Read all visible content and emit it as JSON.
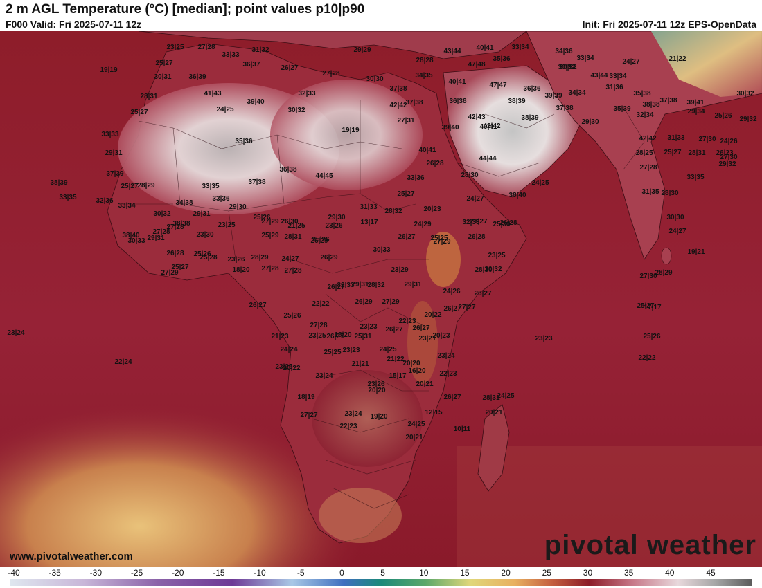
{
  "header": {
    "title": "2 m AGL Temperature (°C) [median]; point values p10|p90",
    "valid": "F000 Valid: Fri 2025-07-11 12z",
    "init": "Init: Fri 2025-07-11 12z EPS-OpenData"
  },
  "footer": {
    "site": "www.pivotalweather.com",
    "brand": "pivotal weather"
  },
  "colorbar": {
    "ticks": [
      "-40",
      "-35",
      "-30",
      "-25",
      "-20",
      "-15",
      "-10",
      "-5",
      "0",
      "5",
      "10",
      "15",
      "20",
      "25",
      "30",
      "35",
      "40",
      "45"
    ]
  },
  "point_values": [
    "23|25",
    "27|28",
    "33|33",
    "31|32",
    "29|29",
    "28|28",
    "43|44",
    "40|41",
    "33|34",
    "34|36",
    "33|34",
    "30|32",
    "19|19",
    "25|27",
    "36|37",
    "26|27",
    "27|28",
    "47|48",
    "35|36",
    "30|32",
    "24|27",
    "21|22",
    "30|31",
    "36|39",
    "30|30",
    "34|35",
    "37|38",
    "43|44",
    "33|34",
    "41|43",
    "40|41",
    "47|47",
    "36|36",
    "34|34",
    "31|36",
    "35|38",
    "28|31",
    "39|40",
    "32|33",
    "37|38",
    "36|38",
    "39|39",
    "38|38",
    "37|38",
    "30|32",
    "25|27",
    "24|25",
    "30|32",
    "42|42",
    "38|39",
    "37|38",
    "35|39",
    "39|41",
    "27|31",
    "42|43",
    "42|42",
    "38|39",
    "29|30",
    "32|34",
    "29|34",
    "25|26",
    "29|32",
    "33|33",
    "19|19",
    "39|40",
    "40|41",
    "42|42",
    "31|33",
    "27|30",
    "35|36",
    "28|31",
    "29|31",
    "24|26",
    "40|41",
    "28|25",
    "25|27",
    "26|23",
    "27|30",
    "44|44",
    "29|32",
    "27|28",
    "36|38",
    "37|38",
    "44|45",
    "26|28",
    "28|30",
    "24|25",
    "33|35",
    "37|39",
    "38|39",
    "28|29",
    "33|35",
    "33|36",
    "31|35",
    "25|27",
    "34|38",
    "25|27",
    "28|30",
    "33|35",
    "32|36",
    "33|36",
    "29|30",
    "24|27",
    "38|40",
    "29|31",
    "30|30",
    "33|34",
    "30|32",
    "28|32",
    "20|23",
    "23|25",
    "27|29",
    "29|30",
    "31|33",
    "24|29",
    "25|30",
    "21|27",
    "38|38",
    "38|40",
    "27|28",
    "23|30",
    "25|26",
    "26|30",
    "21|25",
    "23|26",
    "13|17",
    "32|33",
    "26|28",
    "29|31",
    "27|28",
    "25|29",
    "28|31",
    "25|26",
    "26|27",
    "25|25",
    "24|27",
    "19|21",
    "30|33",
    "26|28",
    "25|26",
    "25|28",
    "23|26",
    "28|29",
    "24|27",
    "26|29",
    "30|33",
    "27|29",
    "26|28",
    "23|25",
    "30|32",
    "27|28",
    "27|28",
    "26|29",
    "23|29",
    "28|30",
    "28|29",
    "27|30",
    "27|29",
    "25|27",
    "18|20",
    "26|27",
    "29|31",
    "28|32",
    "26|29",
    "29|31",
    "24|26",
    "26|27",
    "25|27",
    "26|27",
    "22|22",
    "32|33",
    "27|29",
    "25|26",
    "22|23",
    "20|22",
    "26|27",
    "27|27",
    "17|17",
    "27|28",
    "18|20",
    "23|23",
    "26|27",
    "26|27",
    "23|21",
    "20|23",
    "25|26",
    "23|23",
    "23|24",
    "21|23",
    "23|25",
    "26|27",
    "25|31",
    "24|25",
    "20|20",
    "23|24",
    "22|24",
    "24|24",
    "23|23",
    "25|25",
    "21|22",
    "23|25",
    "16|20",
    "22|23",
    "22|22",
    "23|26",
    "20|22",
    "23|24",
    "21|21",
    "15|17",
    "20|20",
    "20|21",
    "26|27",
    "28|31",
    "20|21",
    "24|25",
    "18|19",
    "27|27",
    "23|24",
    "22|23",
    "19|20",
    "24|25",
    "12|15",
    "20|21",
    "10|11"
  ]
}
